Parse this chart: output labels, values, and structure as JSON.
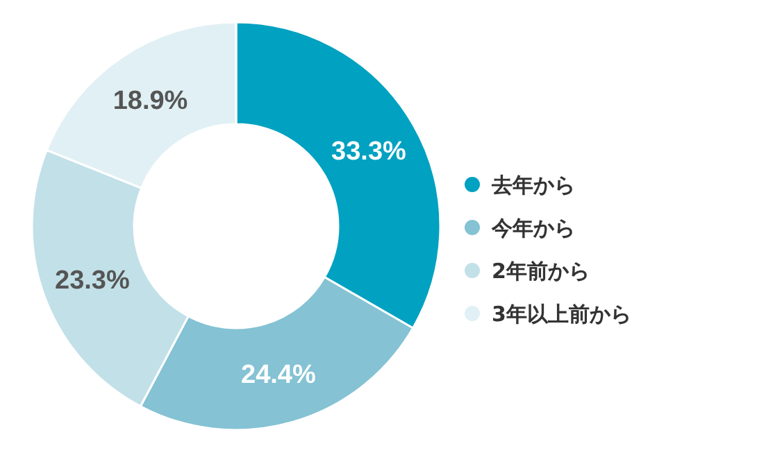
{
  "chart_data": {
    "type": "donut",
    "categories": [
      "去年から",
      "今年から",
      "2年前から",
      "3年以上前から"
    ],
    "values": [
      33.3,
      24.4,
      23.3,
      18.9
    ],
    "colors": [
      "#00a1c1",
      "#84c2d4",
      "#c2e0e8",
      "#e1f0f4"
    ],
    "value_labels": [
      "33.3%",
      "24.4%",
      "23.3%",
      "18.9%"
    ],
    "legend": "right"
  }
}
